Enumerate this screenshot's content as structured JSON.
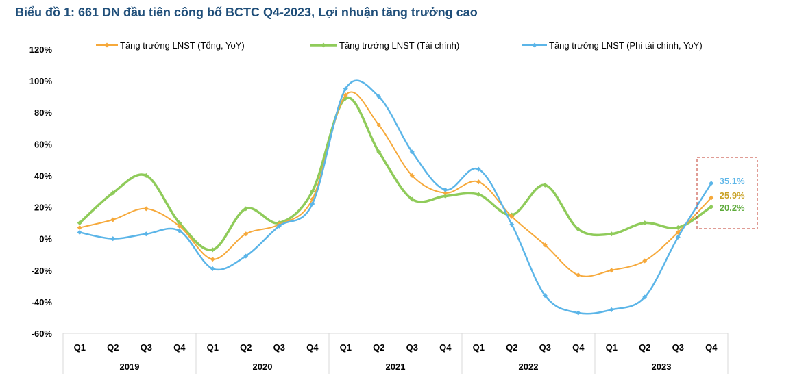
{
  "title": "Biểu đồ 1: 661 DN đầu tiên công bố BCTC Q4-2023, Lợi nhuận tăng trưởng cao",
  "colors": {
    "total": "#F6A93B",
    "financial": "#8FCB5A",
    "nonfinancial": "#5BB5E8",
    "highlight": "#C0392B",
    "axis": "#D9D9D9"
  },
  "chart_data": {
    "type": "line",
    "title": "Biểu đồ 1: 661 DN đầu tiên công bố BCTC Q4-2023, Lợi nhuận tăng trưởng cao",
    "xlabel": "",
    "ylabel": "",
    "ylim": [
      -60,
      120
    ],
    "yticks": [
      -60,
      -40,
      -20,
      0,
      20,
      40,
      60,
      80,
      100,
      120
    ],
    "ytick_labels": [
      "-60%",
      "-40%",
      "-20%",
      "0%",
      "20%",
      "40%",
      "60%",
      "80%",
      "100%",
      "120%"
    ],
    "quarters": [
      "Q1",
      "Q2",
      "Q3",
      "Q4",
      "Q1",
      "Q2",
      "Q3",
      "Q4",
      "Q1",
      "Q2",
      "Q3",
      "Q4",
      "Q1",
      "Q2",
      "Q3",
      "Q4",
      "Q1",
      "Q2",
      "Q3",
      "Q4"
    ],
    "years": [
      "2019",
      "2020",
      "2021",
      "2022",
      "2023"
    ],
    "legend_position": "top",
    "series": [
      {
        "name": "Tăng trưởng LNST (Tổng, YoY)",
        "key": "total",
        "values": [
          7,
          12,
          19,
          8,
          -13,
          3,
          9,
          25,
          91,
          72,
          40,
          29,
          36,
          14,
          -4,
          -23,
          -20,
          -14,
          4,
          25.9
        ]
      },
      {
        "name": "Tăng trưởng LNST (Tài chính)",
        "key": "financial",
        "values": [
          10,
          29,
          40,
          10,
          -7,
          19,
          10,
          30,
          89,
          55,
          25,
          27,
          28,
          15,
          34,
          6,
          3,
          10,
          7,
          20.2
        ]
      },
      {
        "name": "Tăng trưởng LNST (Phi tài chính, YoY)",
        "key": "nonfinancial",
        "values": [
          4,
          0,
          3,
          5,
          -19,
          -11,
          8,
          22,
          95,
          90,
          55,
          31,
          44,
          9,
          -36,
          -47,
          -45,
          -37,
          1,
          35.1
        ]
      }
    ],
    "annotations": [
      {
        "series": "nonfinancial",
        "text": "35.1%"
      },
      {
        "series": "total",
        "text": "25.9%"
      },
      {
        "series": "financial",
        "text": "20.2%"
      }
    ]
  }
}
